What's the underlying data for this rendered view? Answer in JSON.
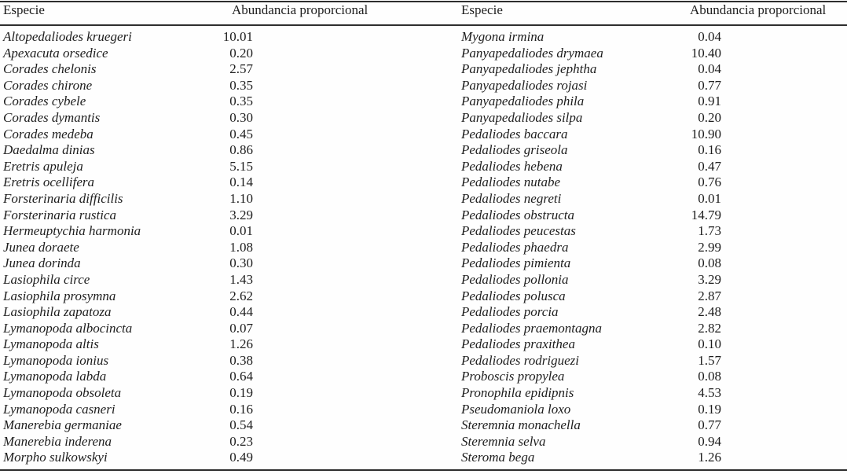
{
  "page": {
    "background_color": "#fefefe",
    "text_color": "#1d1d1d",
    "rule_color": "#2e2e2e"
  },
  "table": {
    "left": {
      "headers": {
        "species": "Especie",
        "abundance": "Abundancia proporcional"
      },
      "rows": [
        {
          "species": "Altopedaliodes kruegeri",
          "abundance": "10.01"
        },
        {
          "species": "Apexacuta orsedice",
          "abundance": "0.20"
        },
        {
          "species": "Corades chelonis",
          "abundance": "2.57"
        },
        {
          "species": "Corades chirone",
          "abundance": "0.35"
        },
        {
          "species": "Corades cybele",
          "abundance": "0.35"
        },
        {
          "species": "Corades dymantis",
          "abundance": "0.30"
        },
        {
          "species": "Corades medeba",
          "abundance": "0.45"
        },
        {
          "species": "Daedalma dinias",
          "abundance": "0.86"
        },
        {
          "species": "Eretris apuleja",
          "abundance": "5.15"
        },
        {
          "species": "Eretris ocellifera",
          "abundance": "0.14"
        },
        {
          "species": "Forsterinaria difficilis",
          "abundance": "1.10"
        },
        {
          "species": "Forsterinaria rustica",
          "abundance": "3.29"
        },
        {
          "species": "Hermeuptychia harmonia",
          "abundance": "0.01"
        },
        {
          "species": "Junea doraete",
          "abundance": "1.08"
        },
        {
          "species": "Junea dorinda",
          "abundance": "0.30"
        },
        {
          "species": "Lasiophila circe",
          "abundance": "1.43"
        },
        {
          "species": "Lasiophila prosymna",
          "abundance": "2.62"
        },
        {
          "species": "Lasiophila zapatoza",
          "abundance": "0.44"
        },
        {
          "species": "Lymanopoda albocincta",
          "abundance": "0.07"
        },
        {
          "species": "Lymanopoda altis",
          "abundance": "1.26"
        },
        {
          "species": "Lymanopoda ionius",
          "abundance": "0.38"
        },
        {
          "species": "Lymanopoda labda",
          "abundance": "0.64"
        },
        {
          "species": "Lymanopoda obsoleta",
          "abundance": "0.19"
        },
        {
          "species": "Lymanopoda casneri",
          "abundance": "0.16"
        },
        {
          "species": "Manerebia germaniae",
          "abundance": "0.54"
        },
        {
          "species": "Manerebia inderena",
          "abundance": "0.23"
        },
        {
          "species": "Morpho sulkowskyi",
          "abundance": "0.49"
        }
      ]
    },
    "right": {
      "headers": {
        "species": "Especie",
        "abundance": "Abundancia proporcional"
      },
      "rows": [
        {
          "species": "Mygona irmina",
          "abundance": "0.04"
        },
        {
          "species": "Panyapedaliodes drymaea",
          "abundance": "10.40"
        },
        {
          "species": "Panyapedaliodes jephtha",
          "abundance": "0.04"
        },
        {
          "species": "Panyapedaliodes rojasi",
          "abundance": "0.77"
        },
        {
          "species": "Panyapedaliodes phila",
          "abundance": "0.91"
        },
        {
          "species": "Panyapedaliodes silpa",
          "abundance": "0.20"
        },
        {
          "species": "Pedaliodes baccara",
          "abundance": "10.90"
        },
        {
          "species": "Pedaliodes griseola",
          "abundance": "0.16"
        },
        {
          "species": "Pedaliodes hebena",
          "abundance": "0.47"
        },
        {
          "species": "Pedaliodes nutabe",
          "abundance": "0.76"
        },
        {
          "species": "Pedaliodes negreti",
          "abundance": "0.01"
        },
        {
          "species": "Pedaliodes obstructa",
          "abundance": "14.79"
        },
        {
          "species": "Pedaliodes peucestas",
          "abundance": "1.73"
        },
        {
          "species": "Pedaliodes phaedra",
          "abundance": "2.99"
        },
        {
          "species": "Pedaliodes pimienta",
          "abundance": "0.08"
        },
        {
          "species": "Pedaliodes pollonia",
          "abundance": "3.29"
        },
        {
          "species": "Pedaliodes polusca",
          "abundance": "2.87"
        },
        {
          "species": "Pedaliodes porcia",
          "abundance": "2.48"
        },
        {
          "species": "Pedaliodes praemontagna",
          "abundance": "2.82"
        },
        {
          "species": "Pedaliodes praxithea",
          "abundance": "0.10"
        },
        {
          "species": "Pedaliodes rodriguezi",
          "abundance": "1.57"
        },
        {
          "species": "Proboscis propylea",
          "abundance": "0.08"
        },
        {
          "species": "Pronophila epidipnis",
          "abundance": "4.53"
        },
        {
          "species": "Pseudomaniola loxo",
          "abundance": "0.19"
        },
        {
          "species": "Steremnia monachella",
          "abundance": "0.77"
        },
        {
          "species": "Steremnia selva",
          "abundance": "0.94"
        },
        {
          "species": "Steroma bega",
          "abundance": "1.26"
        }
      ]
    }
  }
}
